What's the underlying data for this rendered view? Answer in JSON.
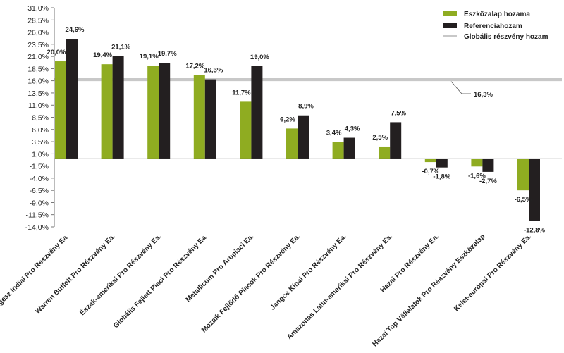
{
  "chart_data": {
    "type": "bar",
    "categories": [
      "Gangesz Indiai Pro Részvény Ea.",
      "Warren Buffett Pro Részvény Ea.",
      "Észak-amerikai Pro Részvény Ea.",
      "Globális Fejlett Piaci Pro Részvény Ea.",
      "Metallicum Pro Árupiaci Ea.",
      "Mozaik Fejlődő Piacok Pro Részvény Ea.",
      "Jangce Kínai Pro Részvény Ea.",
      "Amazonas Latin-amerikai Pro Részvény Ea.",
      "Hazai Pro Részvény Ea.",
      "Hazai Top Vállalatok Pro Részvény Eszközalap",
      "Kelet-európai Pro Részvény Ea."
    ],
    "series": [
      {
        "name": "Eszközalap hozama",
        "color": "#8fac21",
        "values": [
          20.0,
          19.4,
          19.1,
          17.2,
          11.7,
          6.2,
          3.4,
          2.5,
          -0.7,
          -1.6,
          -6.5
        ],
        "labels": [
          "20,0%",
          "19,4%",
          "19,1%",
          "17,2%",
          "11,7%",
          "6,2%",
          "3,4%",
          "2,5%",
          "-0,7%",
          "-1,6%",
          "-6,5%"
        ]
      },
      {
        "name": "Referenciahozam",
        "color": "#231f20",
        "values": [
          24.6,
          21.1,
          19.7,
          16.3,
          19.0,
          8.9,
          4.3,
          7.5,
          -1.8,
          -2.7,
          -12.8
        ],
        "labels": [
          "24,6%",
          "21,1%",
          "19,7%",
          "16,3%",
          "19,0%",
          "8,9%",
          "4,3%",
          "7,5%",
          "-1,8%",
          "-2,7%",
          "-12,8%"
        ]
      }
    ],
    "reference_line": {
      "name": "Globális részvény hozam",
      "value": 16.3,
      "label": "16,3%",
      "color": "#c8c8c8"
    },
    "y_ticks": [
      "31,0%",
      "28,5%",
      "26,0%",
      "23,5%",
      "21,0%",
      "18,5%",
      "16,0%",
      "13,5%",
      "11,0%",
      "8,5%",
      "6,0%",
      "3,5%",
      "1,0%",
      "-1,5%",
      "-4,0%",
      "-6,5%",
      "-9,0%",
      "-11,5%",
      "-14,0%"
    ],
    "ylim": [
      -14.0,
      31.0
    ],
    "grid": false,
    "legend_position": "top-right"
  }
}
